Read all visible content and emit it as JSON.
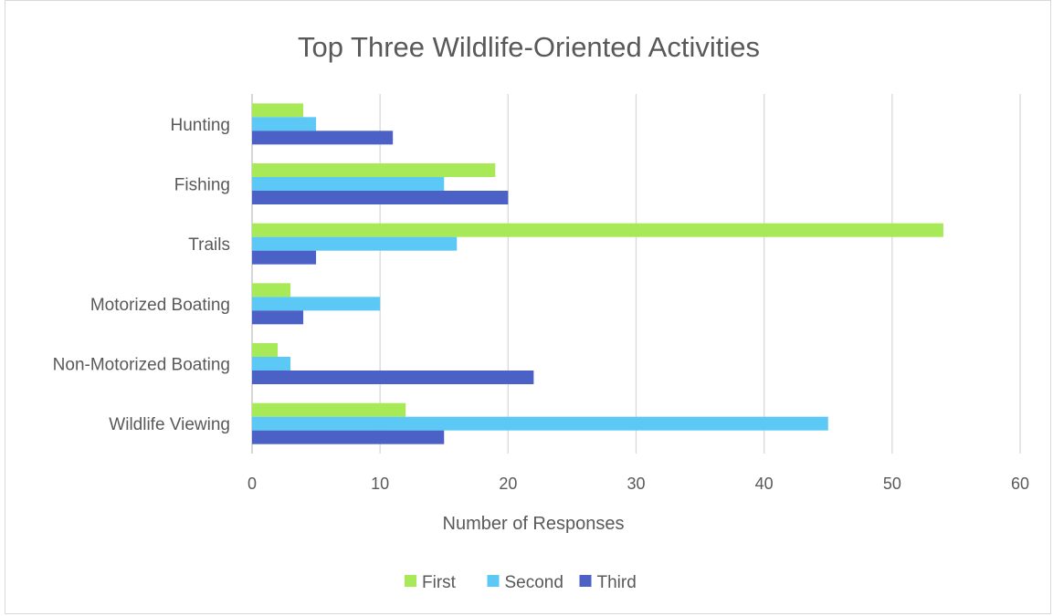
{
  "chart_data": {
    "type": "bar",
    "orientation": "horizontal",
    "title": "Top Three Wildlife-Oriented Activities",
    "xlabel": "Number of Responses",
    "ylabel": "",
    "xlim": [
      0,
      60
    ],
    "xticks": [
      0,
      10,
      20,
      30,
      40,
      50,
      60
    ],
    "grid": true,
    "legend_position": "bottom",
    "categories": [
      "Hunting",
      "Fishing",
      "Trails",
      "Motorized Boating",
      "Non-Motorized Boating",
      "Wildlife Viewing"
    ],
    "series": [
      {
        "name": "First",
        "color": "#a7e957",
        "values": [
          4,
          19,
          54,
          3,
          2,
          12
        ]
      },
      {
        "name": "Second",
        "color": "#5bc8f5",
        "values": [
          5,
          15,
          16,
          10,
          3,
          45
        ]
      },
      {
        "name": "Third",
        "color": "#4b61c5",
        "values": [
          11,
          20,
          5,
          4,
          22,
          15
        ]
      }
    ]
  }
}
